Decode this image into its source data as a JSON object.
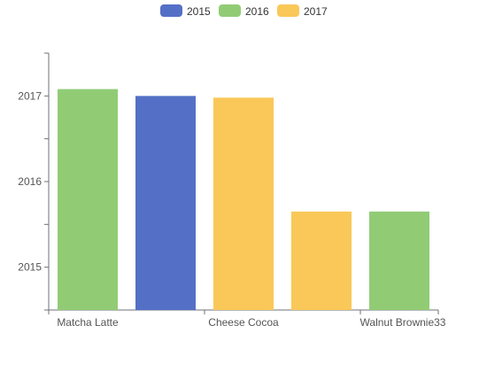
{
  "chart_data": {
    "type": "bar",
    "title": "",
    "xlabel": "",
    "ylabel": "",
    "legend": {
      "position": "top-center",
      "items": [
        {
          "name": "2015",
          "color": "#5470c6"
        },
        {
          "name": "2016",
          "color": "#91cc75"
        },
        {
          "name": "2017",
          "color": "#fac858"
        }
      ]
    },
    "x_ticks": [
      "Matcha Latte",
      "Cheese Cocoa",
      "Walnut Brownie33"
    ],
    "y_ticks": [
      2015,
      2016,
      2017
    ],
    "ylim": [
      2014.5,
      2017.5
    ],
    "grid": false,
    "bars": [
      {
        "value": 2017.08,
        "color": "#91cc75"
      },
      {
        "value": 2017.0,
        "color": "#5470c6"
      },
      {
        "value": 2016.98,
        "color": "#fac858"
      },
      {
        "value": 2015.65,
        "color": "#fac858"
      },
      {
        "value": 2015.65,
        "color": "#91cc75"
      }
    ]
  }
}
